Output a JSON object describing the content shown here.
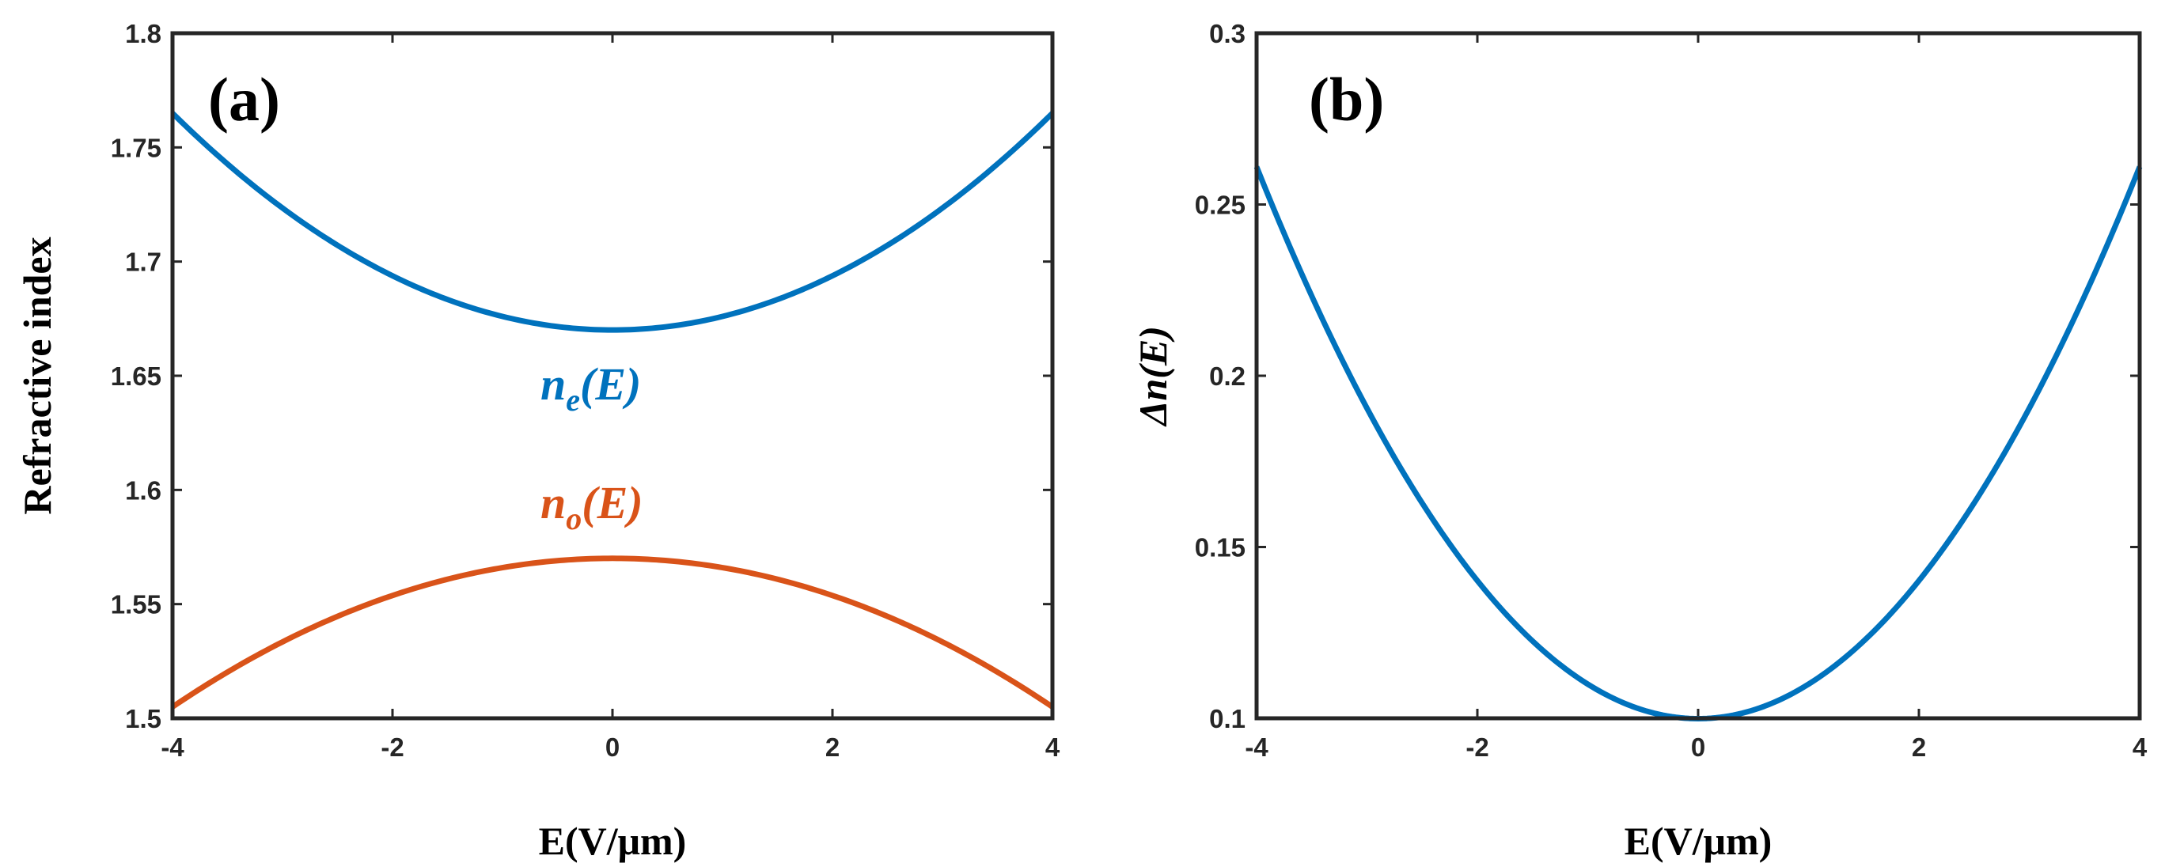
{
  "chart_data": [
    {
      "type": "line",
      "panel_label": "(a)",
      "xlabel": "E(V/μm)",
      "ylabel": "Refractive index",
      "xlim": [
        -4,
        4
      ],
      "ylim": [
        1.5,
        1.8
      ],
      "xticks": [
        "-4",
        "-2",
        "0",
        "2",
        "4"
      ],
      "yticks": [
        "1.5",
        "1.55",
        "1.6",
        "1.65",
        "1.7",
        "1.75",
        "1.8"
      ],
      "xtick_values": [
        -4,
        -2,
        0,
        2,
        4
      ],
      "ytick_values": [
        1.5,
        1.55,
        1.6,
        1.65,
        1.7,
        1.75,
        1.8
      ],
      "series": [
        {
          "name": "n_e(E)",
          "label_base": "n",
          "label_sub": "e",
          "label_arg": "(E)",
          "color": "#0072BD",
          "x": [
            -4,
            -3,
            -2,
            -1,
            0,
            1,
            2,
            3,
            4
          ],
          "y": [
            1.765,
            1.7234,
            1.6938,
            1.676,
            1.67,
            1.676,
            1.6938,
            1.7234,
            1.765
          ]
        },
        {
          "name": "n_o(E)",
          "label_base": "n",
          "label_sub": "o",
          "label_arg": "(E)",
          "color": "#D95319",
          "x": [
            -4,
            -3,
            -2,
            -1,
            0,
            1,
            2,
            3,
            4
          ],
          "y": [
            1.505,
            1.5334,
            1.5538,
            1.566,
            1.57,
            1.566,
            1.5538,
            1.5334,
            1.505
          ]
        }
      ]
    },
    {
      "type": "line",
      "panel_label": "(b)",
      "xlabel": "E(V/μm)",
      "ylabel": "Δn(E)",
      "xlim": [
        -4,
        4
      ],
      "ylim": [
        0.1,
        0.3
      ],
      "xticks": [
        "-4",
        "-2",
        "0",
        "2",
        "4"
      ],
      "yticks": [
        "0.1",
        "0.15",
        "0.2",
        "0.25",
        "0.3"
      ],
      "xtick_values": [
        -4,
        -2,
        0,
        2,
        4
      ],
      "ytick_values": [
        0.1,
        0.15,
        0.2,
        0.25,
        0.3
      ],
      "series": [
        {
          "name": "Δn(E)",
          "color": "#0072BD",
          "x": [
            -4,
            -3,
            -2,
            -1,
            0,
            1,
            2,
            3,
            4
          ],
          "y": [
            0.261,
            0.1906,
            0.14,
            0.11,
            0.1,
            0.11,
            0.14,
            0.1906,
            0.261
          ]
        }
      ]
    }
  ]
}
